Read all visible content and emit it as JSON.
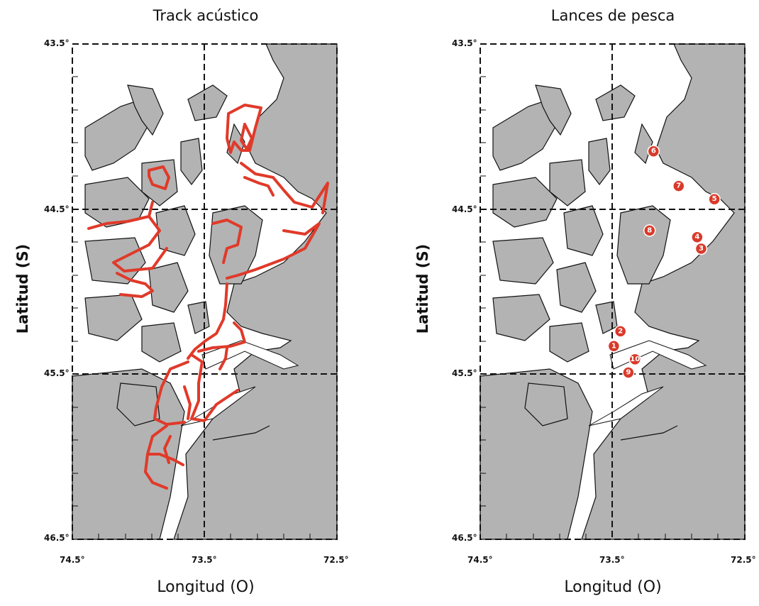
{
  "panels": [
    {
      "title": "Track acústico"
    },
    {
      "title": "Lances de pesca"
    }
  ],
  "axes": {
    "xlabel": "Longitud (O)",
    "ylabel": "Latitud (S)",
    "lat_ticks": [
      "43.5°",
      "44.5°",
      "45.5°",
      "46.5°"
    ],
    "lon_ticks": [
      "74.5°",
      "73.5°",
      "72.5°"
    ]
  },
  "colors": {
    "land": "#b3b3b3",
    "track": "#e03a2a",
    "haul": "#d93a2a"
  },
  "hauls": [
    {
      "id": "1",
      "lon": -73.49,
      "lat": -45.33
    },
    {
      "id": "2",
      "lon": -73.44,
      "lat": -45.24
    },
    {
      "id": "3",
      "lon": -72.83,
      "lat": -44.74
    },
    {
      "id": "4",
      "lon": -72.86,
      "lat": -44.67
    },
    {
      "id": "5",
      "lon": -72.73,
      "lat": -44.44
    },
    {
      "id": "6",
      "lon": -73.19,
      "lat": -44.15
    },
    {
      "id": "7",
      "lon": -73.0,
      "lat": -44.36
    },
    {
      "id": "8",
      "lon": -73.22,
      "lat": -44.63
    },
    {
      "id": "9",
      "lon": -73.38,
      "lat": -45.49
    },
    {
      "id": "10",
      "lon": -73.33,
      "lat": -45.41
    }
  ]
}
